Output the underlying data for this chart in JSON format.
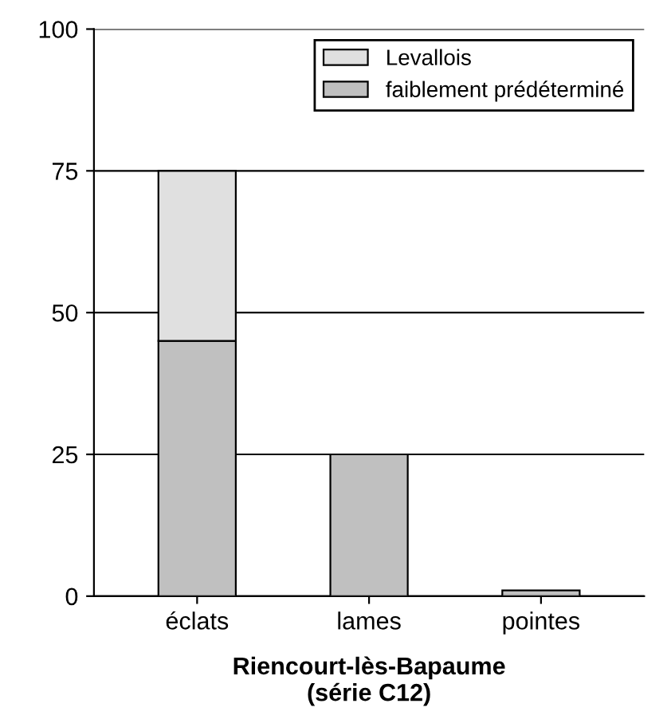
{
  "chart_data": {
    "type": "bar",
    "stacked": true,
    "xlabel": "Riencourt-lès-Bapaume\n(série C12)",
    "categories": [
      "éclats",
      "lames",
      "pointes"
    ],
    "series": [
      {
        "name": "faiblement prédéterminé",
        "color": "#c0c0c0",
        "values": [
          45,
          25,
          1
        ]
      },
      {
        "name": "Levallois",
        "color": "#e0e0e0",
        "values": [
          30,
          0,
          0
        ]
      }
    ],
    "ylim": [
      0,
      100
    ],
    "yticks": [
      0,
      25,
      50,
      75,
      100
    ],
    "grid": "y",
    "legend": "top right"
  }
}
